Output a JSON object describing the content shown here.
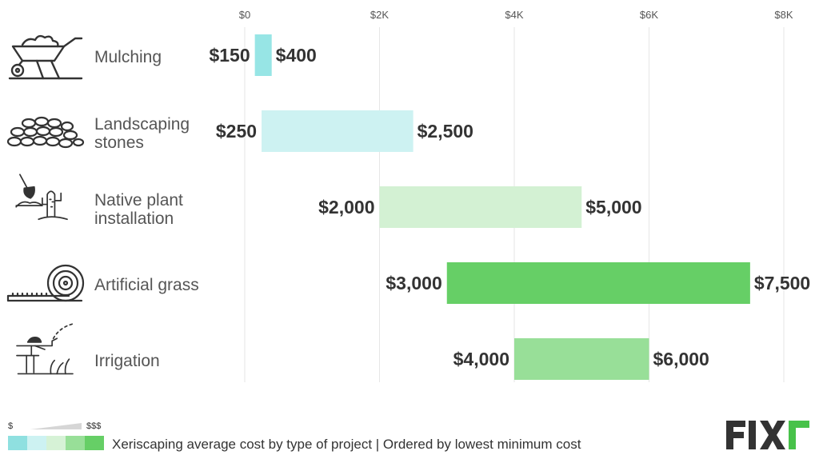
{
  "chart_data": {
    "type": "bar",
    "orientation": "horizontal-range",
    "title": "",
    "xlabel": "",
    "ylabel": "",
    "xlim": [
      0,
      8000
    ],
    "x_ticks": [
      "$0",
      "$2K",
      "$4K",
      "$6K",
      "$8K"
    ],
    "x_tick_values": [
      0,
      2000,
      4000,
      6000,
      8000
    ],
    "grid": true,
    "categories": [
      "Mulching",
      "Landscaping stones",
      "Native plant installation",
      "Artificial grass",
      "Irrigation"
    ],
    "category_lines": [
      [
        "Mulching"
      ],
      [
        "Landscaping",
        "stones"
      ],
      [
        "Native plant",
        "installation"
      ],
      [
        "Artificial grass"
      ],
      [
        "Irrigation"
      ]
    ],
    "min_values": [
      150,
      250,
      2000,
      3000,
      4000
    ],
    "max_values": [
      400,
      2500,
      5000,
      7500,
      6000
    ],
    "min_labels": [
      "$150",
      "$250",
      "$2,000",
      "$3,000",
      "$4,000"
    ],
    "max_labels": [
      "$400",
      "$2,500",
      "$5,000",
      "$7,500",
      "$6,000"
    ],
    "bar_colors": [
      "#97e5e5",
      "#cdf2f2",
      "#d3f1d3",
      "#66cf66",
      "#98df98"
    ]
  },
  "icons": [
    "wheelbarrow-icon",
    "stones-icon",
    "shovel-cactus-icon",
    "grass-roll-icon",
    "sprinkler-icon"
  ],
  "legend": {
    "scale_min": "$",
    "scale_max": "$$$",
    "swatch_colors": [
      "#8fe0e0",
      "#cdf2f2",
      "#d6f2d6",
      "#98df98",
      "#66cf66"
    ]
  },
  "caption": "Xeriscaping average cost by type of project  | Ordered by lowest minimum cost",
  "brand": {
    "logo_text": "FIXr",
    "colors": {
      "dark": "#333333",
      "accent": "#48c24a"
    }
  }
}
